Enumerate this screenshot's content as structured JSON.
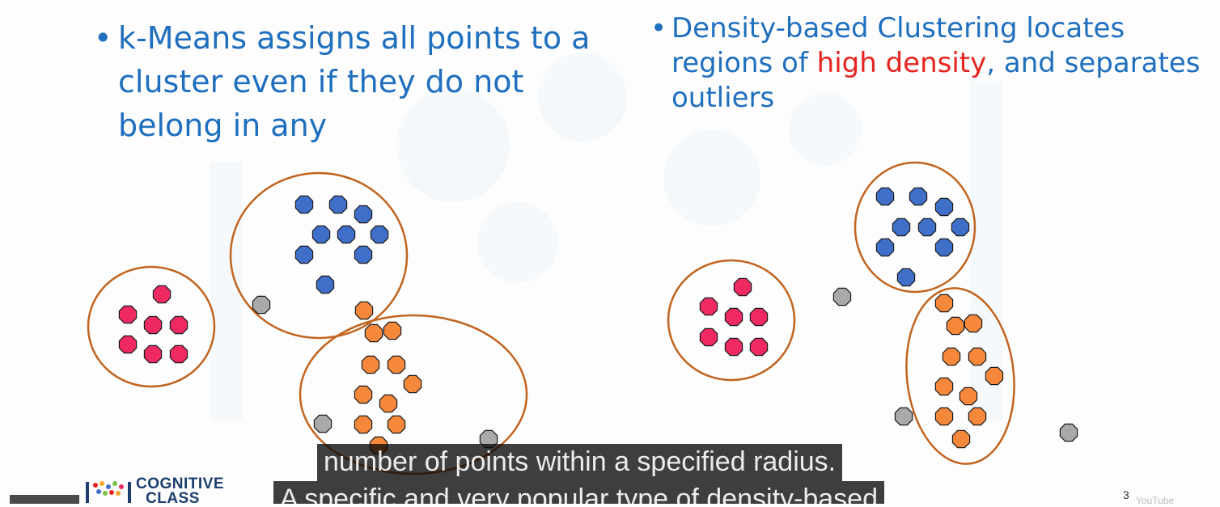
{
  "left_bullet": {
    "text": "k-Means assigns all points to a cluster even if they do not belong in any"
  },
  "right_bullet": {
    "before": "Density-based Clustering locates regions of ",
    "highlight": "high density",
    "after": ", and separates outliers"
  },
  "colors": {
    "pink": "#ef2a63",
    "blue": "#3f6fc9",
    "orange": "#f5883a",
    "gray": "#a9a9a9",
    "ring": "#c0641f",
    "accent": "#e8231f"
  },
  "captions": {
    "line1": "number of points within a specified radius.",
    "line2": "A specific and very popular type of density-based"
  },
  "logo": {
    "line1": "COGNITIVE",
    "line2": "CLASS"
  },
  "page_number": "3",
  "watermark_label": "YouTube"
}
